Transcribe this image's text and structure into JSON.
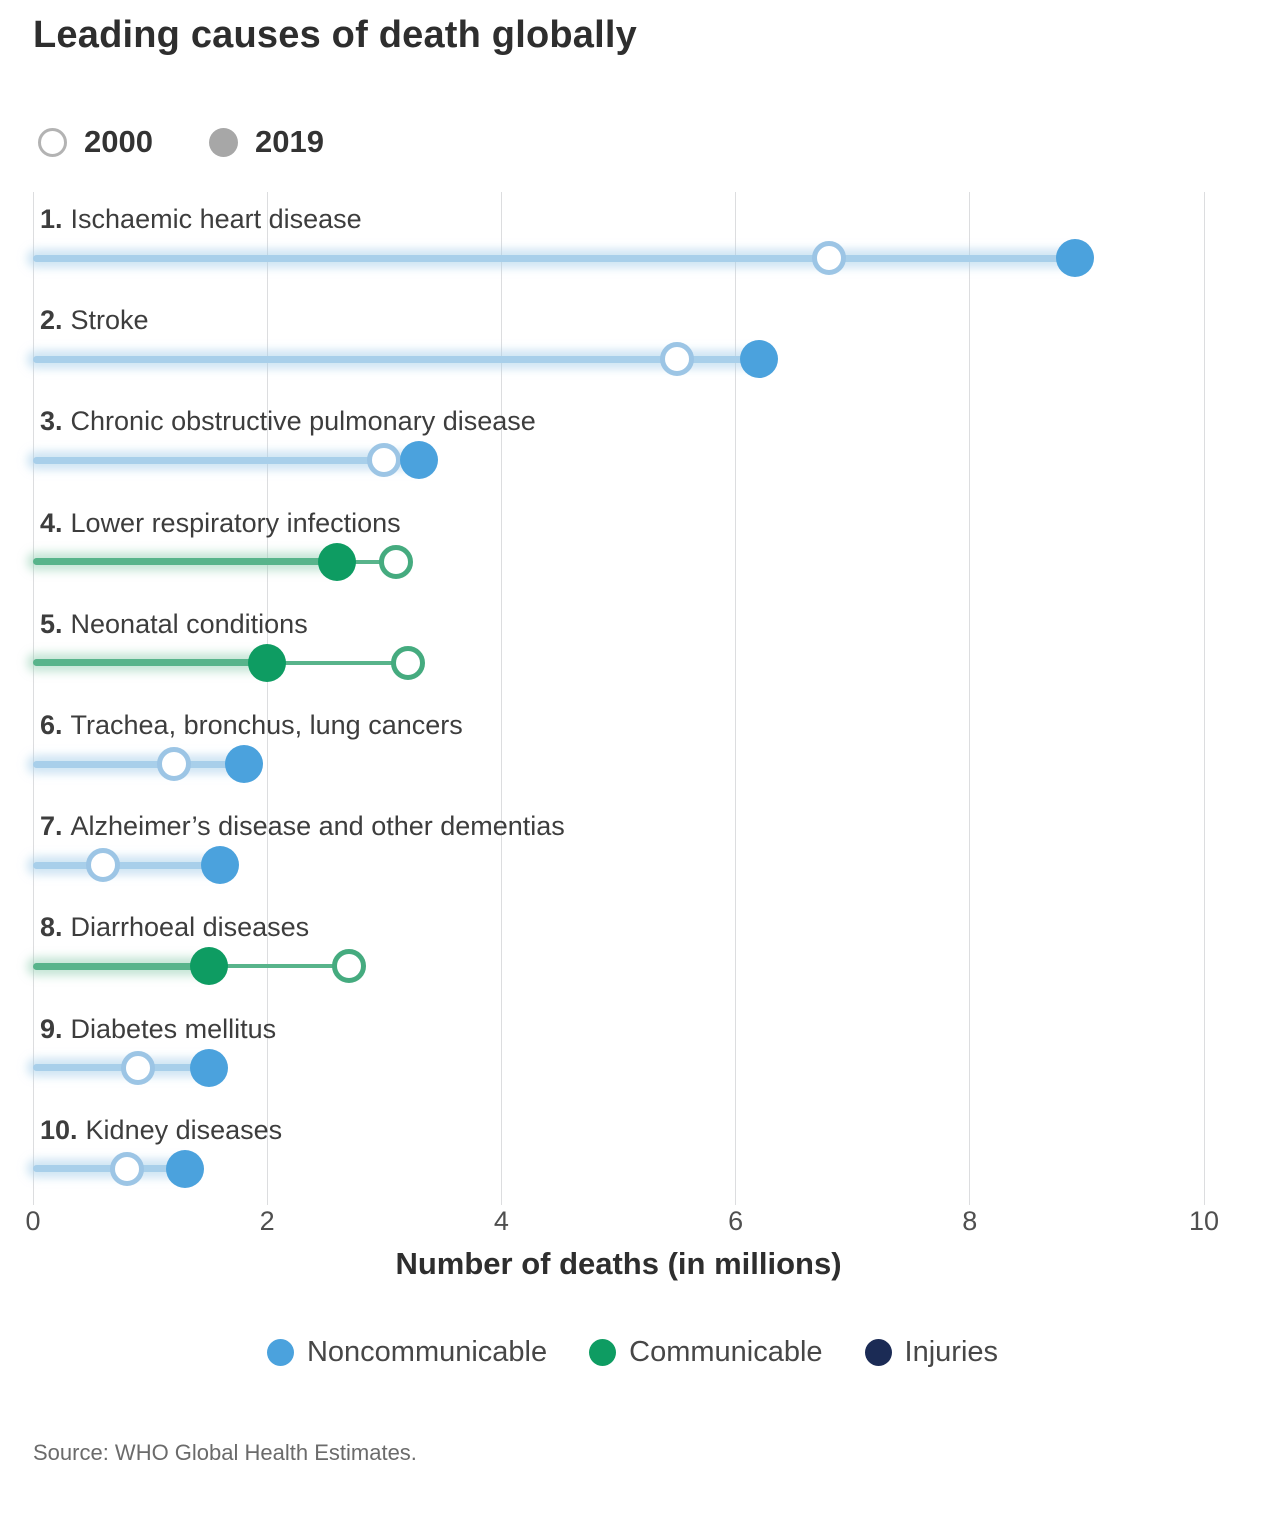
{
  "title": "Leading causes of death globally",
  "top_legend": {
    "items": [
      {
        "label": "2000",
        "style": "hollow"
      },
      {
        "label": "2019",
        "style": "filled"
      }
    ]
  },
  "x_axis": {
    "label": "Number of deaths (in millions)"
  },
  "source": "Source: WHO Global Health Estimates.",
  "colors": {
    "gridline": "#dcdddf",
    "legend_2000_ring": "#b3b3b3",
    "legend_2019_fill": "#a7a7a7",
    "categories": {
      "Noncommunicable": {
        "fill": "#4BA2DD",
        "band": "#A8CFEA",
        "glow": "rgba(168,207,234,0.55)",
        "ring": "#9CC5E5"
      },
      "Communicable": {
        "fill": "#0E9C62",
        "band": "#58B48B",
        "glow": "rgba(141,205,176,0.50)",
        "ring": "#45AB7F"
      },
      "Injuries": {
        "fill": "#1B2B55",
        "band": "#1B2B55",
        "glow": "rgba(27,43,85,0.30)",
        "ring": "#1B2B55"
      }
    }
  },
  "bottom_legend": [
    {
      "label": "Noncommunicable",
      "category": "Noncommunicable"
    },
    {
      "label": "Communicable",
      "category": "Communicable"
    },
    {
      "label": "Injuries",
      "category": "Injuries"
    }
  ],
  "chart_data": {
    "type": "dumbbell",
    "title": "Leading causes of death globally",
    "xlabel": "Number of deaths (in millions)",
    "ylabel": "",
    "xlim": [
      0,
      10
    ],
    "ticks": [
      0,
      2,
      4,
      6,
      8,
      10
    ],
    "grid": "vertical",
    "legend_position": "top",
    "series": [
      "2000",
      "2019"
    ],
    "rows": [
      {
        "rank": "1.",
        "cause": "Ischaemic heart disease",
        "category": "Noncommunicable",
        "v2000": 6.8,
        "v2019": 8.9
      },
      {
        "rank": "2.",
        "cause": "Stroke",
        "category": "Noncommunicable",
        "v2000": 5.5,
        "v2019": 6.2
      },
      {
        "rank": "3.",
        "cause": "Chronic obstructive pulmonary disease",
        "category": "Noncommunicable",
        "v2000": 3.0,
        "v2019": 3.3
      },
      {
        "rank": "4.",
        "cause": "Lower respiratory infections",
        "category": "Communicable",
        "v2000": 3.1,
        "v2019": 2.6
      },
      {
        "rank": "5.",
        "cause": "Neonatal conditions",
        "category": "Communicable",
        "v2000": 3.2,
        "v2019": 2.0
      },
      {
        "rank": "6.",
        "cause": "Trachea, bronchus, lung cancers",
        "category": "Noncommunicable",
        "v2000": 1.2,
        "v2019": 1.8
      },
      {
        "rank": "7.",
        "cause": "Alzheimer’s disease and other dementias",
        "category": "Noncommunicable",
        "v2000": 0.6,
        "v2019": 1.6
      },
      {
        "rank": "8.",
        "cause": "Diarrhoeal diseases",
        "category": "Communicable",
        "v2000": 2.7,
        "v2019": 1.5
      },
      {
        "rank": "9.",
        "cause": "Diabetes mellitus",
        "category": "Noncommunicable",
        "v2000": 0.9,
        "v2019": 1.5
      },
      {
        "rank": "10.",
        "cause": "Kidney diseases",
        "category": "Noncommunicable",
        "v2000": 0.8,
        "v2019": 1.3
      }
    ]
  }
}
